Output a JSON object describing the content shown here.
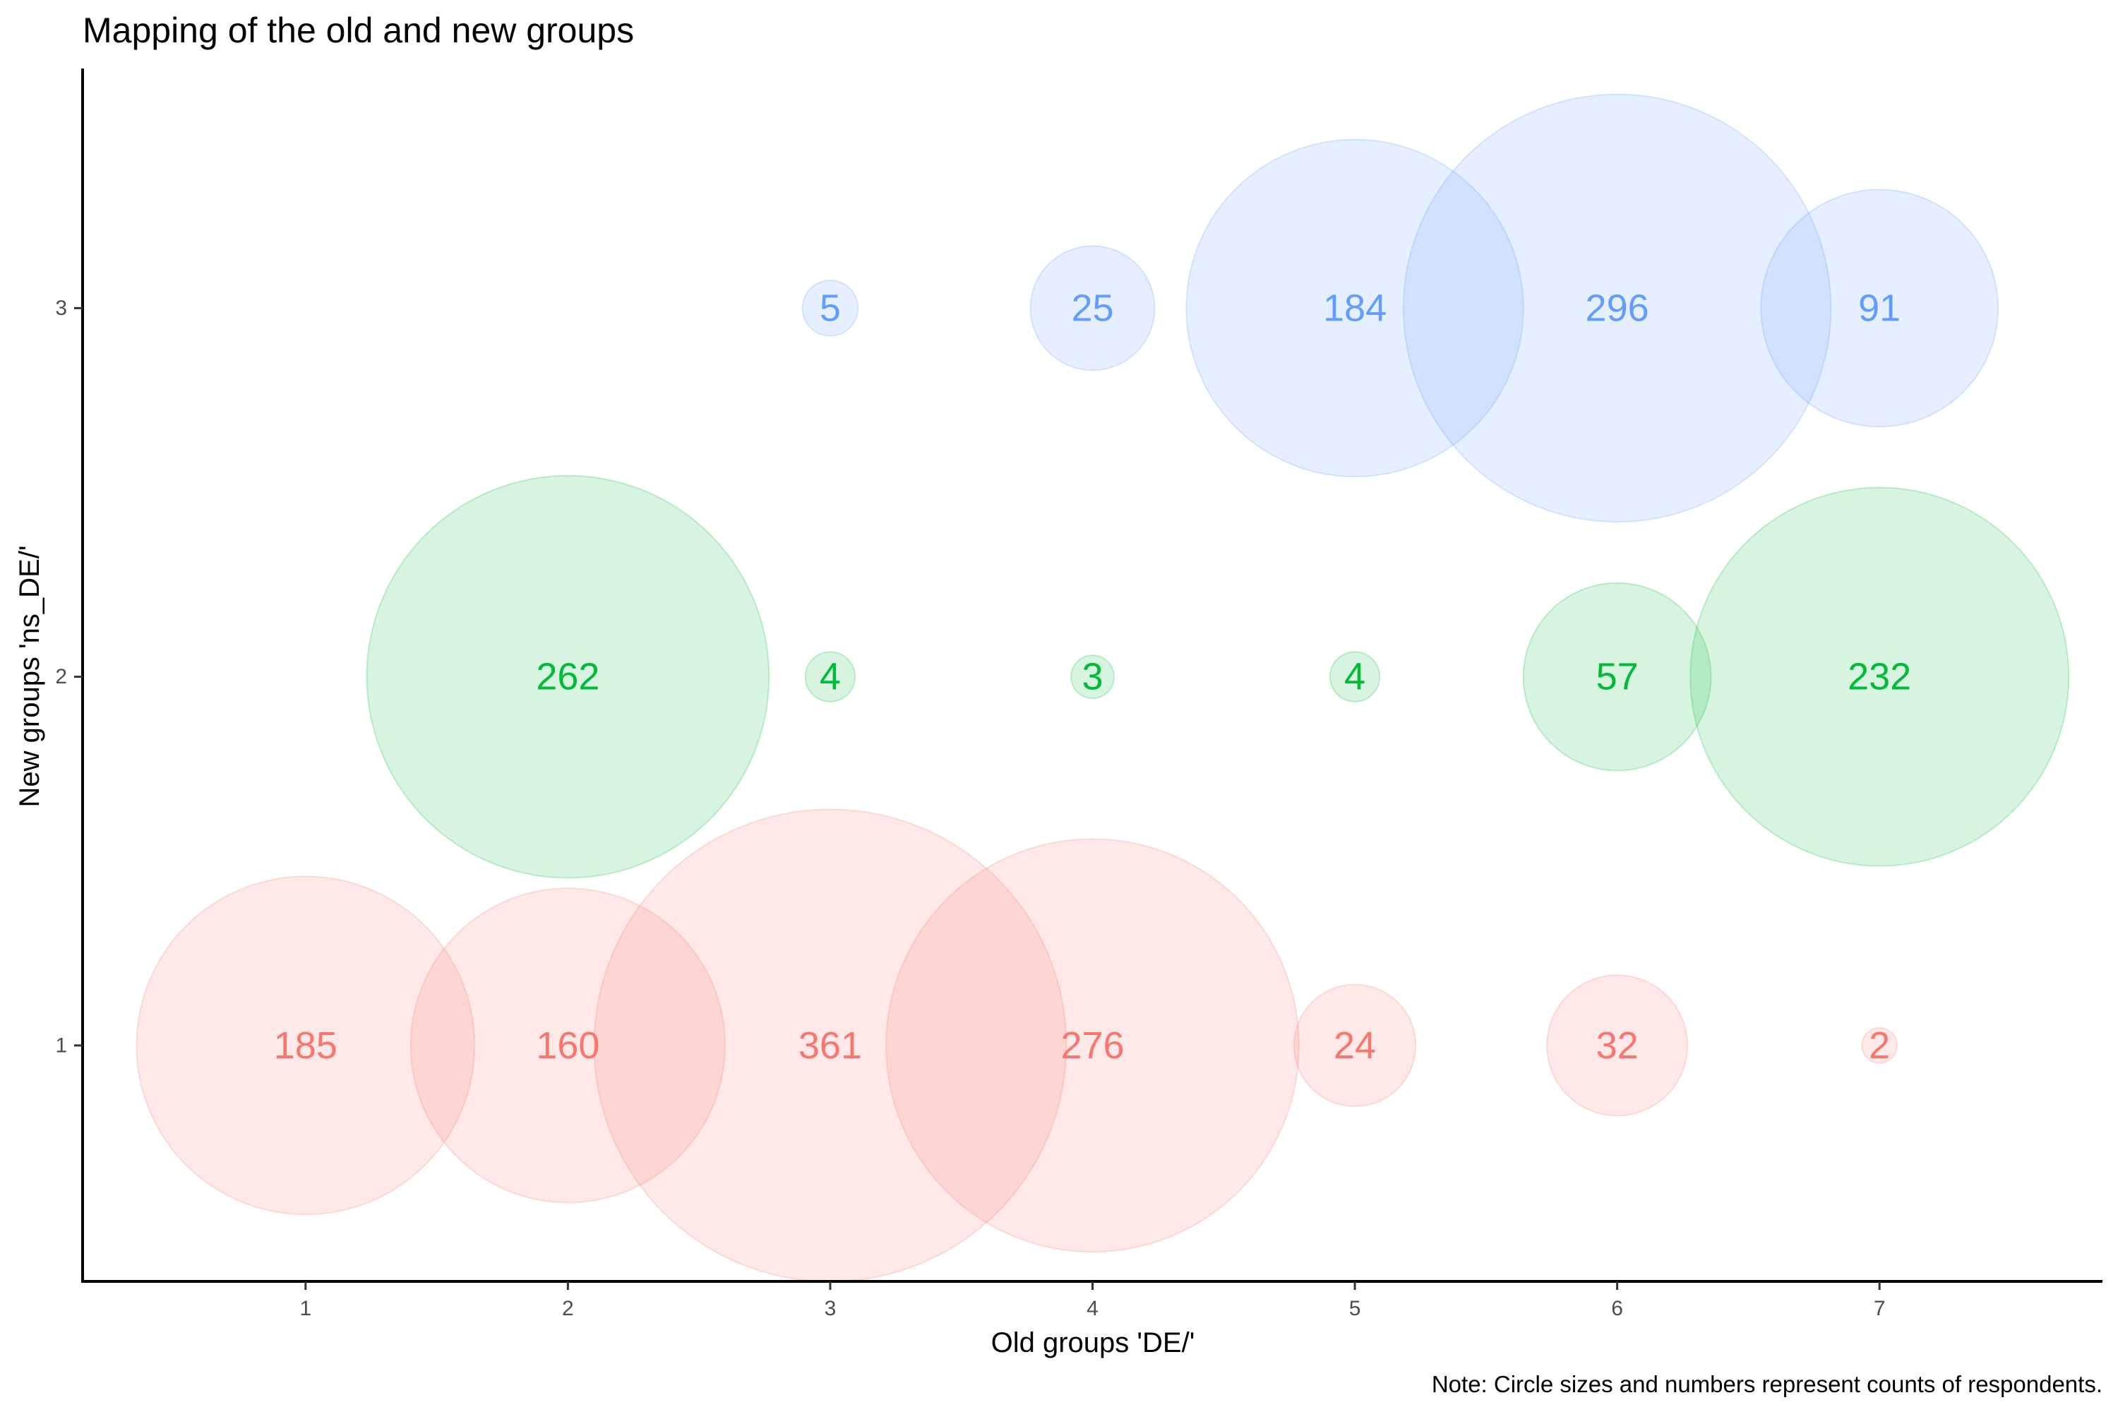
{
  "chart_data": {
    "type": "scatter",
    "title": "Mapping of the old and new groups",
    "xlabel": "Old groups 'DE/'",
    "ylabel": "New groups 'ns_DE/'",
    "note": "Note: Circle sizes and numbers represent counts of respondents.",
    "x_ticks": [
      "1",
      "2",
      "3",
      "4",
      "5",
      "6",
      "7"
    ],
    "y_ticks": [
      "1",
      "2",
      "3"
    ],
    "xlim": [
      0.15,
      7.85
    ],
    "ylim": [
      0.36,
      3.65
    ],
    "grid": false,
    "legend": "none",
    "size_encodes": "count",
    "colors": {
      "1": "#F8766D",
      "2": "#00BA38",
      "3": "#619CFF"
    },
    "points": [
      {
        "x": 1,
        "y": 1,
        "count": 185
      },
      {
        "x": 2,
        "y": 1,
        "count": 160
      },
      {
        "x": 3,
        "y": 1,
        "count": 361
      },
      {
        "x": 4,
        "y": 1,
        "count": 276
      },
      {
        "x": 5,
        "y": 1,
        "count": 24
      },
      {
        "x": 6,
        "y": 1,
        "count": 32
      },
      {
        "x": 7,
        "y": 1,
        "count": 2
      },
      {
        "x": 2,
        "y": 2,
        "count": 262
      },
      {
        "x": 3,
        "y": 2,
        "count": 4
      },
      {
        "x": 4,
        "y": 2,
        "count": 3
      },
      {
        "x": 5,
        "y": 2,
        "count": 4
      },
      {
        "x": 6,
        "y": 2,
        "count": 57
      },
      {
        "x": 7,
        "y": 2,
        "count": 232
      },
      {
        "x": 3,
        "y": 3,
        "count": 5
      },
      {
        "x": 4,
        "y": 3,
        "count": 25
      },
      {
        "x": 5,
        "y": 3,
        "count": 184
      },
      {
        "x": 6,
        "y": 3,
        "count": 296
      },
      {
        "x": 7,
        "y": 3,
        "count": 91
      }
    ]
  }
}
